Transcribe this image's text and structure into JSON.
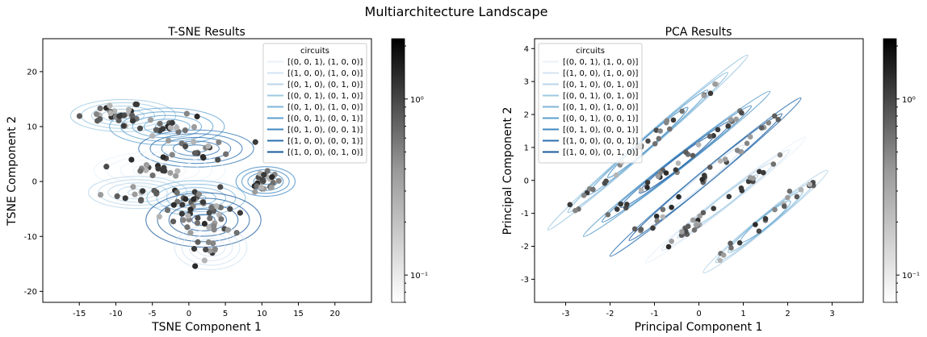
{
  "figure": {
    "title": "Multiarchitecture Landscape"
  },
  "legend_title": "circuits",
  "series_names": [
    "[(0, 0, 1), (1, 0, 0)]",
    "[(1, 0, 0), (1, 0, 0)]",
    "[(0, 1, 0), (0, 1, 0)]",
    "[(0, 0, 1), (0, 1, 0)]",
    "[(0, 1, 0), (1, 0, 0)]",
    "[(0, 0, 1), (0, 0, 1)]",
    "[(0, 1, 0), (0, 0, 1)]",
    "[(1, 0, 0), (0, 0, 1)]",
    "[(1, 0, 0), (0, 1, 0)]"
  ],
  "series_colors": [
    "#e8f1fa",
    "#d3e3f2",
    "#bad6ea",
    "#9dc8e2",
    "#7db6d9",
    "#5b9fcd",
    "#3f87c1",
    "#2a6fb0",
    "#195a9c"
  ],
  "chart_data": [
    {
      "type": "scatter",
      "title": "T-SNE Results",
      "xlabel": "TSNE Component 1",
      "ylabel": "TSNE Component 2",
      "xlim": [
        -20,
        25
      ],
      "ylim": [
        -22,
        26
      ],
      "xticks": [
        -15,
        -10,
        -5,
        0,
        5,
        10,
        15,
        20
      ],
      "yticks": [
        -20,
        -10,
        0,
        10,
        20
      ],
      "overlay": "kde contours per circuit",
      "legend_position": "upper right",
      "colorbar": {
        "scale": "log",
        "ticks": [
          {
            "value": 1,
            "label": "10⁰"
          },
          {
            "value": 0.1,
            "label": "10⁻¹"
          }
        ],
        "range": [
          0.07,
          2.2
        ]
      },
      "clusters": [
        {
          "cx": -9,
          "cy": 12,
          "sx": 3.2,
          "sy": 1.3,
          "n": 30
        },
        {
          "cx": -3,
          "cy": 10,
          "sx": 3.5,
          "sy": 1.5,
          "n": 18
        },
        {
          "cx": 1,
          "cy": 6,
          "sx": 3.5,
          "sy": 1.5,
          "n": 18
        },
        {
          "cx": -4,
          "cy": 2,
          "sx": 4,
          "sy": 1.5,
          "n": 18
        },
        {
          "cx": -7,
          "cy": -2,
          "sx": 3,
          "sy": 1.3,
          "n": 14
        },
        {
          "cx": 1,
          "cy": -3,
          "sx": 3,
          "sy": 1.4,
          "n": 14
        },
        {
          "cx": 10.5,
          "cy": 0,
          "sx": 1.8,
          "sy": 1.2,
          "n": 22
        },
        {
          "cx": 2,
          "cy": -7,
          "sx": 3.5,
          "sy": 2.2,
          "n": 30
        },
        {
          "cx": 3,
          "cy": -12,
          "sx": 2.2,
          "sy": 1.8,
          "n": 14
        }
      ]
    },
    {
      "type": "scatter",
      "title": "PCA Results",
      "xlabel": "Principal Component 1",
      "ylabel": "Principal Component 2",
      "xlim": [
        -3.7,
        3.7
      ],
      "ylim": [
        -3.7,
        4.3
      ],
      "xticks": [
        -3,
        -2,
        -1,
        0,
        1,
        2,
        3
      ],
      "yticks": [
        -3,
        -2,
        -1,
        0,
        1,
        2,
        3,
        4
      ],
      "overlay": "kde contours per circuit",
      "legend_position": "upper left",
      "colorbar": {
        "scale": "log",
        "ticks": [
          {
            "value": 1,
            "label": "10⁰"
          },
          {
            "value": 0.1,
            "label": "10⁻¹"
          }
        ],
        "range": [
          0.07,
          2.2
        ]
      },
      "bands": [
        {
          "x0": -3.4,
          "y0": -1.5,
          "x1": 1.1,
          "y1": 3.8,
          "n": 32
        },
        {
          "x0": -2.6,
          "y0": -1.7,
          "x1": 1.6,
          "y1": 2.7,
          "n": 30
        },
        {
          "x0": -2.0,
          "y0": -2.3,
          "x1": 2.3,
          "y1": 2.5,
          "n": 30
        },
        {
          "x0": -1.2,
          "y0": -2.5,
          "x1": 2.4,
          "y1": 1.3,
          "n": 30
        },
        {
          "x0": 0.1,
          "y0": -2.8,
          "x1": 2.9,
          "y1": 0.3,
          "n": 22
        }
      ]
    }
  ]
}
